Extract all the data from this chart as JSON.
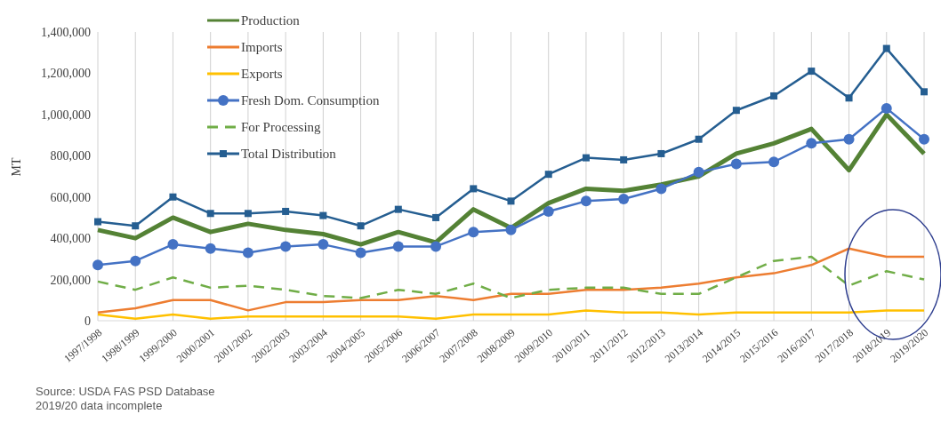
{
  "chart_data": {
    "type": "line",
    "ylabel": "MT",
    "categories": [
      "1997/1998",
      "1998/1999",
      "1999/2000",
      "2000/2001",
      "2001/2002",
      "2002/2003",
      "2003/2004",
      "2004/2005",
      "2005/2006",
      "2006/2007",
      "2007/2008",
      "2008/2009",
      "2009/2010",
      "2010/2011",
      "2011/2012",
      "2012/2013",
      "2013/2014",
      "2014/2015",
      "2015/2016",
      "2016/2017",
      "2017/2018",
      "2018/2019",
      "2019/2020"
    ],
    "series": [
      {
        "name": "Production",
        "color": "#548235",
        "marker": "none",
        "line_style": "solid",
        "values": [
          440000,
          400000,
          500000,
          430000,
          470000,
          440000,
          420000,
          370000,
          430000,
          380000,
          540000,
          450000,
          570000,
          640000,
          630000,
          660000,
          700000,
          810000,
          860000,
          930000,
          730000,
          1000000,
          810000
        ]
      },
      {
        "name": "Imports",
        "color": "#ed7d31",
        "marker": "none",
        "line_style": "solid",
        "values": [
          40000,
          60000,
          100000,
          100000,
          50000,
          90000,
          90000,
          100000,
          100000,
          120000,
          100000,
          130000,
          130000,
          150000,
          150000,
          160000,
          180000,
          210000,
          230000,
          270000,
          350000,
          310000,
          310000
        ]
      },
      {
        "name": "Exports",
        "color": "#ffc000",
        "marker": "none",
        "line_style": "solid",
        "values": [
          30000,
          10000,
          30000,
          10000,
          20000,
          20000,
          20000,
          20000,
          20000,
          10000,
          30000,
          30000,
          30000,
          50000,
          40000,
          40000,
          30000,
          40000,
          40000,
          40000,
          40000,
          50000,
          50000
        ]
      },
      {
        "name": "Fresh Dom. Consumption",
        "color": "#4472c4",
        "marker": "circle",
        "line_style": "solid",
        "values": [
          270000,
          290000,
          370000,
          350000,
          330000,
          360000,
          370000,
          330000,
          360000,
          360000,
          430000,
          440000,
          530000,
          580000,
          590000,
          640000,
          720000,
          760000,
          770000,
          860000,
          880000,
          1030000,
          880000
        ]
      },
      {
        "name": "For Processing",
        "color": "#70ad47",
        "marker": "none",
        "line_style": "dashed",
        "values": [
          190000,
          150000,
          210000,
          160000,
          170000,
          150000,
          120000,
          110000,
          150000,
          130000,
          180000,
          110000,
          150000,
          160000,
          160000,
          130000,
          130000,
          210000,
          290000,
          310000,
          170000,
          240000,
          200000
        ]
      },
      {
        "name": "Total Distribution",
        "color": "#255e91",
        "marker": "square",
        "line_style": "solid",
        "values": [
          480000,
          460000,
          600000,
          520000,
          520000,
          530000,
          510000,
          460000,
          540000,
          500000,
          640000,
          580000,
          710000,
          790000,
          780000,
          810000,
          880000,
          1020000,
          1090000,
          1210000,
          1080000,
          1320000,
          1110000
        ]
      }
    ],
    "ylim": [
      0,
      1400000
    ],
    "yticks": [
      0,
      {
        "value": 200000,
        "label": "200,000"
      },
      {
        "value": 400000,
        "label": "400,000"
      },
      {
        "value": 600000,
        "label": "600,000"
      },
      {
        "value": 800000,
        "label": "800,000"
      },
      {
        "value": 1000000,
        "label": "1,000,000"
      },
      {
        "value": 1200000,
        "label": "1,200,000"
      },
      {
        "value": 1400000,
        "label": "1,400,000"
      }
    ],
    "grid": "x",
    "legend": "top",
    "annotations": [
      "Source: USDA FAS PSD Database",
      "2019/20 data incomplete"
    ]
  }
}
